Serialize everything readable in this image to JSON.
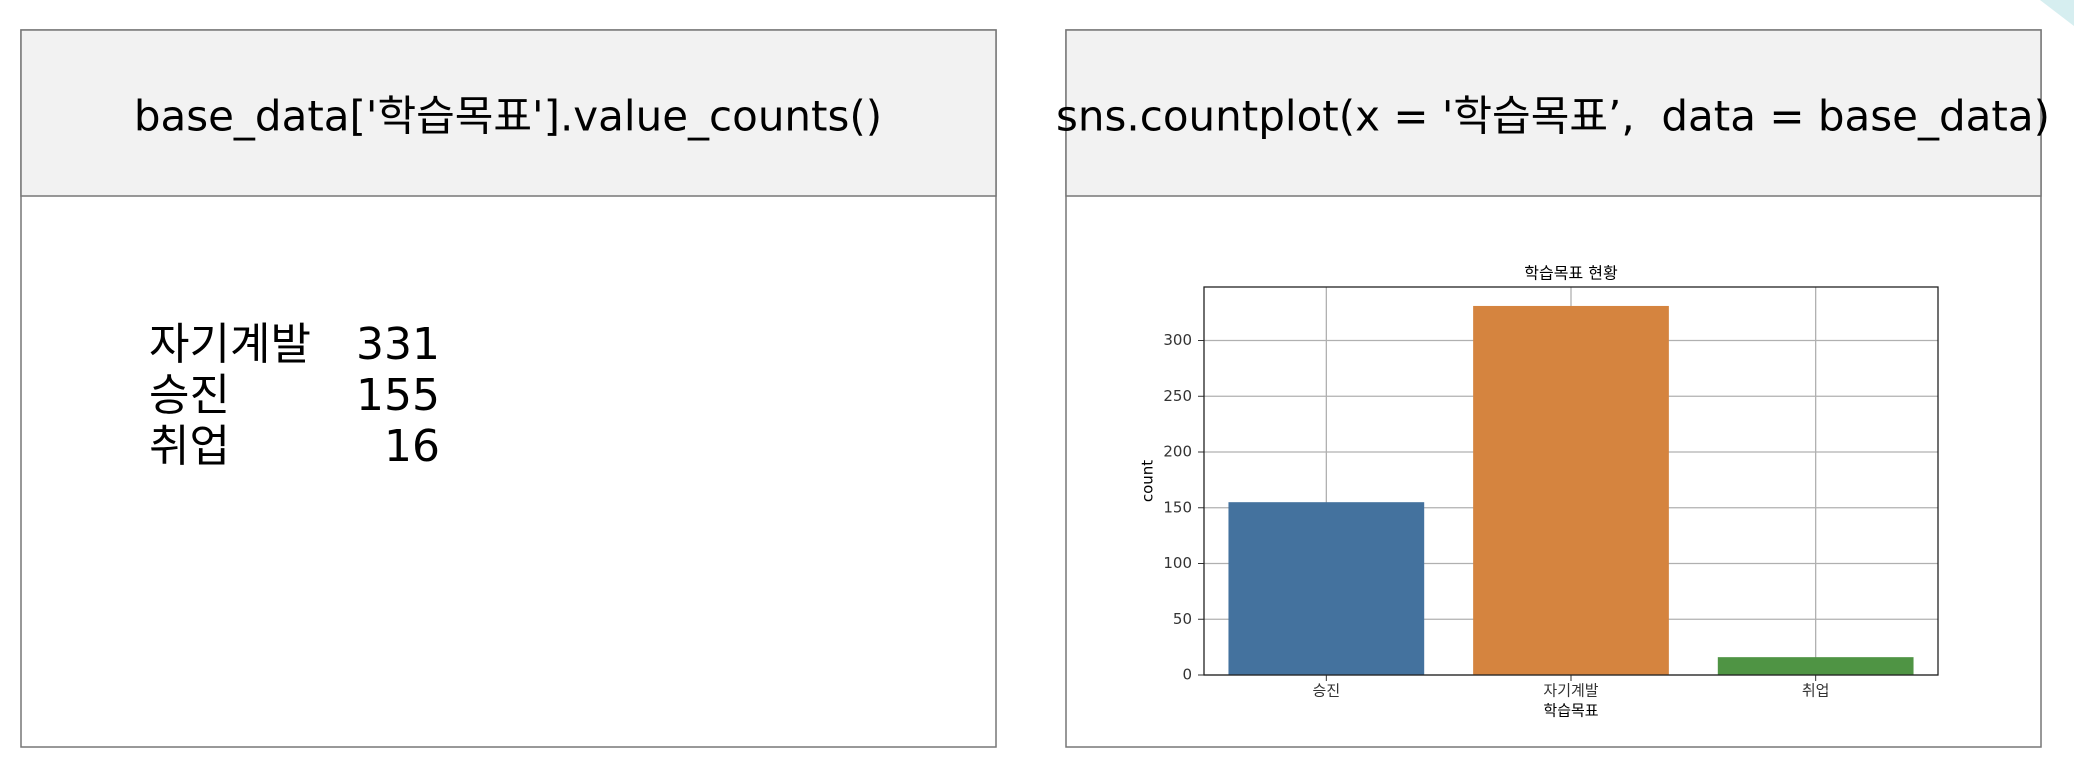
{
  "left_panel": {
    "header": "base_data['학습목표'].value_counts()",
    "rows": [
      [
        "자기계발",
        331
      ],
      [
        "승진",
        155
      ],
      [
        "취업",
        16
      ]
    ]
  },
  "right_panel": {
    "header": "sns.countplot(x = '학습목표’,  data = base_data)"
  },
  "chart_data": {
    "type": "bar",
    "title": "학습목표 현황",
    "x_label": "학습목표",
    "y_label": "count",
    "categories": [
      "승진",
      "자기계발",
      "취업"
    ],
    "values": [
      155,
      331,
      16
    ],
    "colors": [
      "#44729e",
      "#d5843f",
      "#4f9444"
    ],
    "ylim": [
      0,
      348
    ],
    "yticks": [
      0,
      50,
      100,
      150,
      200,
      250,
      300
    ],
    "grid": true
  }
}
